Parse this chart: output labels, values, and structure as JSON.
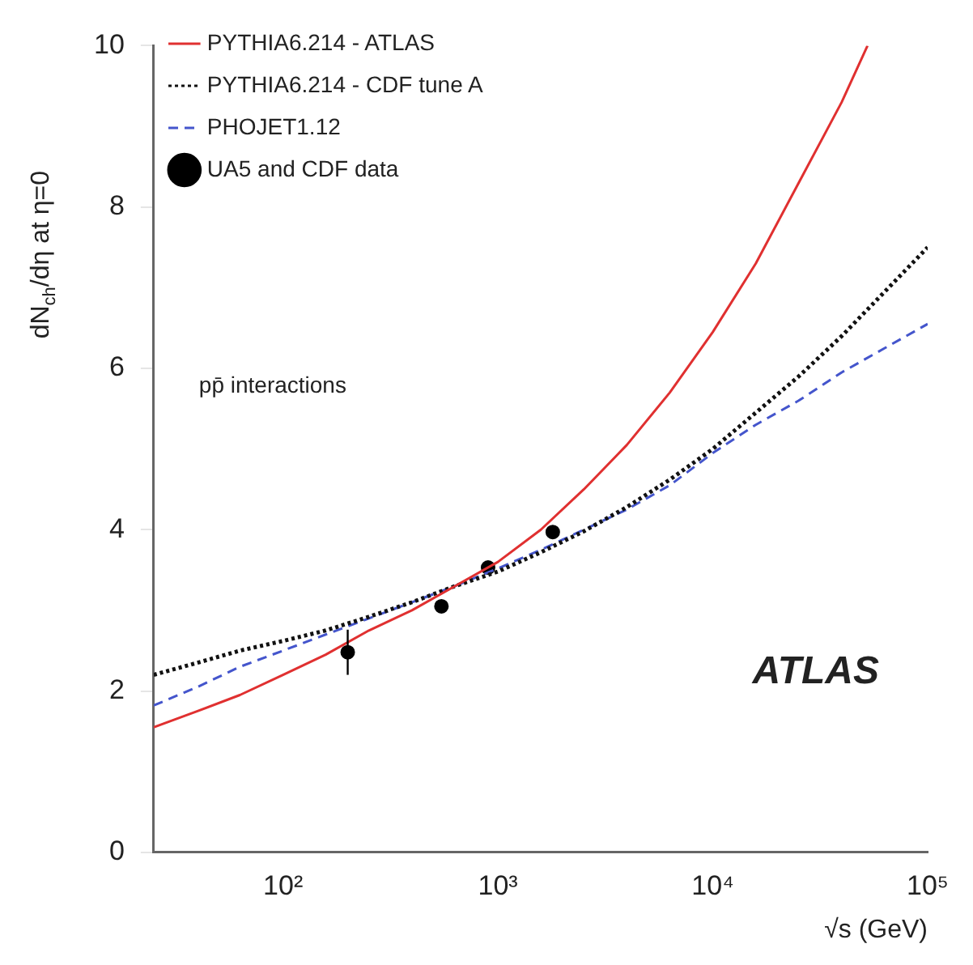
{
  "chart_data": {
    "type": "line",
    "xlabel": "√s (GeV)",
    "ylabel": "dN$_{ch}$/dη at η=0",
    "xlim": [
      25,
      100000
    ],
    "ylim": [
      0,
      10
    ],
    "log": "x",
    "xticks": [
      {
        "value": 100,
        "label": "10²"
      },
      {
        "value": 1000,
        "label": "10³"
      },
      {
        "value": 10000,
        "label": "10⁴"
      },
      {
        "value": 100000,
        "label": "10⁵"
      }
    ],
    "yticks": [
      0,
      2,
      4,
      6,
      8,
      10
    ],
    "grid": false,
    "legend": "top left",
    "marker": "none",
    "series": [
      {
        "name": "PYTHIA6.214 - ATLAS",
        "color": "#e03030",
        "line_style": "solid",
        "x": [
          25,
          40,
          63,
          100,
          158,
          251,
          398,
          631,
          1000,
          1585,
          2512,
          3981,
          6310,
          10000,
          15849,
          25119,
          39811,
          52500
        ],
        "values": [
          1.55,
          1.75,
          1.95,
          2.2,
          2.45,
          2.75,
          3.0,
          3.3,
          3.6,
          4.0,
          4.5,
          5.05,
          5.7,
          6.45,
          7.3,
          8.3,
          9.3,
          10
        ]
      },
      {
        "name": "PYTHIA6.214 - CDF tune A",
        "color": "#111111",
        "line_style": "dotted",
        "x": [
          25,
          40,
          63,
          100,
          158,
          251,
          398,
          631,
          1000,
          1585,
          2512,
          3981,
          6310,
          10000,
          15849,
          25119,
          39811,
          63096,
          100000
        ],
        "values": [
          2.2,
          2.35,
          2.5,
          2.62,
          2.75,
          2.92,
          3.1,
          3.3,
          3.48,
          3.72,
          3.98,
          4.28,
          4.62,
          5.0,
          5.45,
          5.9,
          6.4,
          6.95,
          7.5
        ]
      },
      {
        "name": "PHOJET1.12",
        "color": "#4455cc",
        "line_style": "dashed",
        "x": [
          25,
          40,
          63,
          100,
          158,
          251,
          398,
          631,
          1000,
          1585,
          2512,
          3981,
          6310,
          10000,
          15849,
          25119,
          39811,
          63096,
          100000
        ],
        "values": [
          1.82,
          2.05,
          2.3,
          2.5,
          2.7,
          2.9,
          3.1,
          3.3,
          3.52,
          3.75,
          4.0,
          4.25,
          4.55,
          4.95,
          5.3,
          5.6,
          5.95,
          6.25,
          6.55
        ]
      },
      {
        "name": "UA5 and CDF data",
        "type": "scatter",
        "marker": "circle",
        "color": "#000000",
        "x": [
          200,
          546,
          900,
          1800
        ],
        "values": [
          2.48,
          3.05,
          3.53,
          3.97
        ],
        "errors": [
          0.28,
          null,
          null,
          null
        ]
      }
    ],
    "annotations": [
      "pp̄ interactions",
      "ATLAS"
    ]
  }
}
